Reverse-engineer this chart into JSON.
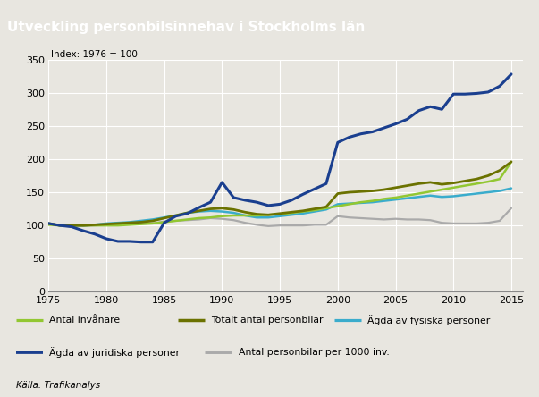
{
  "title": "Utveckling personbilsinnehav i Stockholms län",
  "subtitle": "Index: 1976 = 100",
  "source": "Källa: Trafikanalys",
  "title_bg_color": "#9e948a",
  "plot_bg_color": "#e8e6e0",
  "outer_bg_color": "#e8e6e0",
  "xlim": [
    1975,
    2016
  ],
  "ylim": [
    0,
    350
  ],
  "yticks": [
    0,
    50,
    100,
    150,
    200,
    250,
    300,
    350
  ],
  "xticks": [
    1975,
    1980,
    1985,
    1990,
    1995,
    2000,
    2005,
    2010,
    2015
  ],
  "series": {
    "antal_invanare": {
      "label": "Antal invånare",
      "color": "#92c732",
      "linewidth": 1.8,
      "data_x": [
        1975,
        1976,
        1977,
        1978,
        1979,
        1980,
        1981,
        1982,
        1983,
        1984,
        1985,
        1986,
        1987,
        1988,
        1989,
        1990,
        1991,
        1992,
        1993,
        1994,
        1995,
        1996,
        1997,
        1998,
        1999,
        2000,
        2001,
        2002,
        2003,
        2004,
        2005,
        2006,
        2007,
        2008,
        2009,
        2010,
        2011,
        2012,
        2013,
        2014,
        2015
      ],
      "data_y": [
        101,
        100,
        100,
        100,
        100,
        100,
        100,
        101,
        102,
        103,
        105,
        107,
        109,
        111,
        112,
        114,
        115,
        115,
        115,
        116,
        117,
        119,
        121,
        123,
        126,
        129,
        132,
        135,
        137,
        140,
        142,
        145,
        148,
        151,
        154,
        157,
        160,
        163,
        166,
        170,
        196
      ]
    },
    "totalt_personbilar": {
      "label": "Totalt antal personbilar",
      "color": "#6b7200",
      "linewidth": 2.0,
      "data_x": [
        1975,
        1976,
        1977,
        1978,
        1979,
        1980,
        1981,
        1982,
        1983,
        1984,
        1985,
        1986,
        1987,
        1988,
        1989,
        1990,
        1991,
        1992,
        1993,
        1994,
        1995,
        1996,
        1997,
        1998,
        1999,
        2000,
        2001,
        2002,
        2003,
        2004,
        2005,
        2006,
        2007,
        2008,
        2009,
        2010,
        2011,
        2012,
        2013,
        2014,
        2015
      ],
      "data_y": [
        103,
        100,
        100,
        100,
        101,
        102,
        103,
        104,
        105,
        107,
        111,
        115,
        119,
        122,
        125,
        126,
        124,
        120,
        117,
        116,
        118,
        120,
        122,
        125,
        128,
        148,
        150,
        151,
        152,
        154,
        157,
        160,
        163,
        165,
        162,
        164,
        167,
        170,
        175,
        183,
        196
      ]
    },
    "agda_fysiska": {
      "label": "Ägda av fysiska personer",
      "color": "#3aaccc",
      "linewidth": 1.8,
      "data_x": [
        1975,
        1976,
        1977,
        1978,
        1979,
        1980,
        1981,
        1982,
        1983,
        1984,
        1985,
        1986,
        1987,
        1988,
        1989,
        1990,
        1991,
        1992,
        1993,
        1994,
        1995,
        1996,
        1997,
        1998,
        1999,
        2000,
        2001,
        2002,
        2003,
        2004,
        2005,
        2006,
        2007,
        2008,
        2009,
        2010,
        2011,
        2012,
        2013,
        2014,
        2015
      ],
      "data_y": [
        103,
        100,
        100,
        100,
        101,
        103,
        104,
        105,
        107,
        109,
        112,
        115,
        119,
        121,
        122,
        121,
        119,
        115,
        112,
        112,
        114,
        116,
        118,
        121,
        124,
        132,
        133,
        134,
        135,
        137,
        139,
        141,
        143,
        145,
        143,
        144,
        146,
        148,
        150,
        152,
        156
      ]
    },
    "agda_juridiska": {
      "label": "Ägda av juridiska personer",
      "color": "#1a3f8f",
      "linewidth": 2.2,
      "data_x": [
        1975,
        1976,
        1977,
        1978,
        1979,
        1980,
        1981,
        1982,
        1983,
        1984,
        1985,
        1986,
        1987,
        1988,
        1989,
        1990,
        1991,
        1992,
        1993,
        1994,
        1995,
        1996,
        1997,
        1998,
        1999,
        2000,
        2001,
        2002,
        2003,
        2004,
        2005,
        2006,
        2007,
        2008,
        2009,
        2010,
        2011,
        2012,
        2013,
        2014,
        2015
      ],
      "data_y": [
        103,
        100,
        98,
        92,
        87,
        80,
        76,
        76,
        75,
        75,
        104,
        114,
        118,
        127,
        135,
        165,
        142,
        138,
        135,
        130,
        132,
        138,
        147,
        155,
        163,
        225,
        233,
        238,
        241,
        247,
        253,
        260,
        273,
        279,
        275,
        298,
        298,
        299,
        301,
        310,
        328
      ]
    },
    "per1000": {
      "label": "Antal personbilar per 1000 inv.",
      "color": "#aaaaaa",
      "linewidth": 1.6,
      "data_x": [
        1975,
        1976,
        1977,
        1978,
        1979,
        1980,
        1981,
        1982,
        1983,
        1984,
        1985,
        1986,
        1987,
        1988,
        1989,
        1990,
        1991,
        1992,
        1993,
        1994,
        1995,
        1996,
        1997,
        1998,
        1999,
        2000,
        2001,
        2002,
        2003,
        2004,
        2005,
        2006,
        2007,
        2008,
        2009,
        2010,
        2011,
        2012,
        2013,
        2014,
        2015
      ],
      "data_y": [
        102,
        100,
        100,
        99,
        100,
        101,
        102,
        103,
        103,
        103,
        106,
        107,
        108,
        109,
        111,
        110,
        108,
        104,
        101,
        99,
        100,
        100,
        100,
        101,
        101,
        114,
        112,
        111,
        110,
        109,
        110,
        109,
        109,
        108,
        104,
        103,
        103,
        103,
        104,
        107,
        126
      ]
    }
  }
}
